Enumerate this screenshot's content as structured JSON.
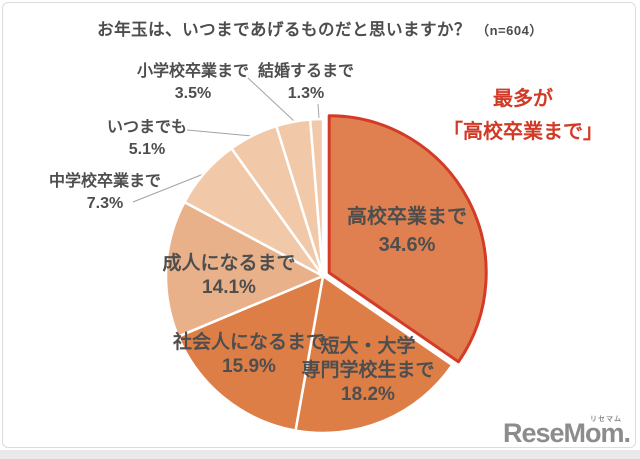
{
  "title": {
    "text": "お年玉は、いつまであげるものだと思いますか？",
    "n": "（n=604）"
  },
  "annotation": {
    "line1": "最多が",
    "line2": "「高校卒業まで」",
    "color": "#d13a26"
  },
  "colors": {
    "highlight_stroke": "#d43b27",
    "slice_divider": "#ffffff",
    "label_text": "#4e4e4e",
    "leader_line": "#a3a3a3",
    "card_border": "#dcdcdc",
    "logo_gray": "#8c8c8c"
  },
  "chart_data": {
    "type": "pie",
    "title": "お年玉は、いつまであげるものだと思いますか？（n=604）",
    "n": 604,
    "start_angle": "12-oclock",
    "direction": "clockwise",
    "legend_position": "labels-on-and-around-pie",
    "slices": [
      {
        "name": "高校卒業まで",
        "value": 34.6,
        "pct": "34.6%",
        "color": "#e08050",
        "highlight": true,
        "display_lines": [
          "高校卒業まで",
          "34.6%"
        ]
      },
      {
        "name": "短大・大学専門学校生まで",
        "value": 18.2,
        "pct": "18.2%",
        "color": "#dd7e47",
        "highlight": false,
        "display_lines": [
          "短大・大学",
          "専門学校生まで",
          "18.2%"
        ]
      },
      {
        "name": "社会人になるまで",
        "value": 15.9,
        "pct": "15.9%",
        "color": "#dd7e47",
        "highlight": false,
        "display_lines": [
          "社会人になるまで",
          "15.9%"
        ]
      },
      {
        "name": "成人になるまで",
        "value": 14.1,
        "pct": "14.1%",
        "color": "#e9b189",
        "highlight": false,
        "display_lines": [
          "成人になるまで",
          "14.1%"
        ]
      },
      {
        "name": "中学校卒業まで",
        "value": 7.3,
        "pct": "7.3%",
        "color": "#f2c9a8",
        "highlight": false,
        "display_lines": [
          "中学校卒業まで",
          "7.3%"
        ]
      },
      {
        "name": "いつまでも",
        "value": 5.1,
        "pct": "5.1%",
        "color": "#f2c9a8",
        "highlight": false,
        "display_lines": [
          "いつまでも",
          "5.1%"
        ]
      },
      {
        "name": "小学校卒業まで",
        "value": 3.5,
        "pct": "3.5%",
        "color": "#f2c9a8",
        "highlight": false,
        "display_lines": [
          "小学校卒業まで",
          "3.5%"
        ]
      },
      {
        "name": "結婚するまで",
        "value": 1.3,
        "pct": "1.3%",
        "color": "#f2c9a8",
        "highlight": false,
        "display_lines": [
          "結婚するまで",
          "1.3%"
        ]
      }
    ]
  },
  "logo": {
    "text": "ReseMom.",
    "kana": "リセマム"
  }
}
